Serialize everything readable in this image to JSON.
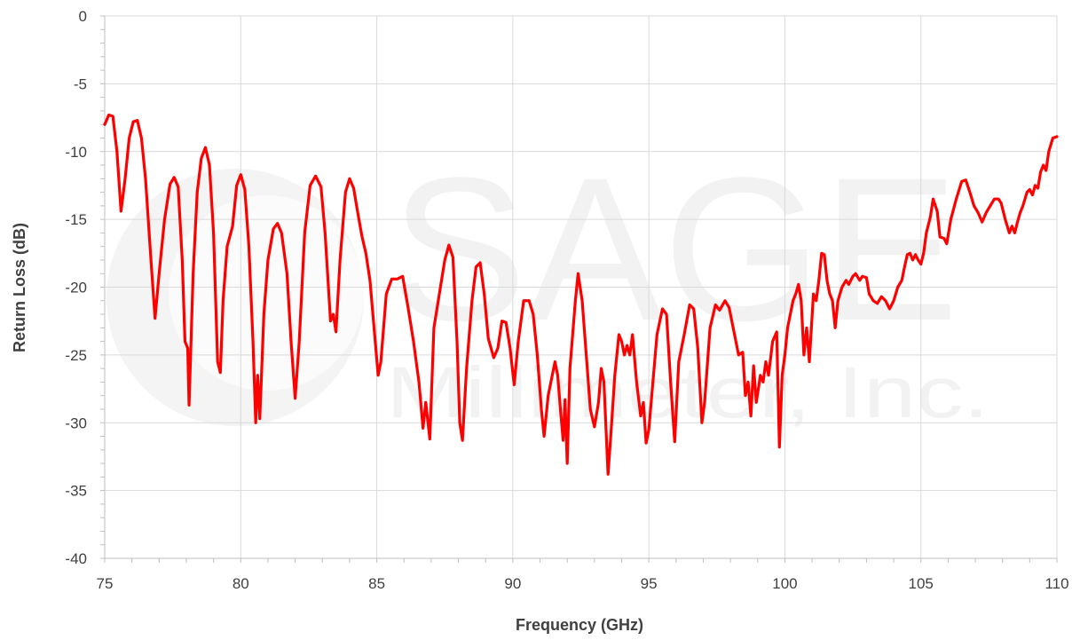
{
  "chart_data": {
    "type": "line",
    "title": "",
    "xlabel": "Frequency (GHz)",
    "ylabel": "Return Loss (dB)",
    "xlim": [
      75,
      110
    ],
    "ylim": [
      -40,
      0
    ],
    "x_ticks": [
      "75",
      "80",
      "85",
      "90",
      "95",
      "100",
      "105",
      "110"
    ],
    "y_ticks": [
      "0",
      "-5",
      "-10",
      "-15",
      "-20",
      "-25",
      "-30",
      "-35",
      "-40"
    ],
    "grid": true,
    "legend": "none",
    "watermark": {
      "line1": "SAGE",
      "line2": "Millimeter, Inc."
    },
    "colors": {
      "series": "#ff0000",
      "grid": "#d9d9d9",
      "text": "#404040",
      "watermark": "#f2f2f2"
    },
    "series": [
      {
        "points": [
          [
            75.0,
            -8.0
          ],
          [
            75.15,
            -7.3
          ],
          [
            75.3,
            -7.4
          ],
          [
            75.45,
            -10.0
          ],
          [
            75.6,
            -14.4
          ],
          [
            75.75,
            -12.0
          ],
          [
            75.9,
            -9.0
          ],
          [
            76.05,
            -7.8
          ],
          [
            76.2,
            -7.7
          ],
          [
            76.35,
            -9.0
          ],
          [
            76.5,
            -12.0
          ],
          [
            76.7,
            -18.0
          ],
          [
            76.85,
            -22.3
          ],
          [
            77.0,
            -19.0
          ],
          [
            77.2,
            -15.0
          ],
          [
            77.4,
            -12.4
          ],
          [
            77.55,
            -11.9
          ],
          [
            77.7,
            -12.6
          ],
          [
            77.85,
            -18.0
          ],
          [
            77.95,
            -24.0
          ],
          [
            78.05,
            -24.5
          ],
          [
            78.1,
            -28.7
          ],
          [
            78.25,
            -19.0
          ],
          [
            78.4,
            -13.0
          ],
          [
            78.55,
            -10.5
          ],
          [
            78.7,
            -9.7
          ],
          [
            78.85,
            -11.0
          ],
          [
            79.0,
            -16.0
          ],
          [
            79.15,
            -25.5
          ],
          [
            79.25,
            -26.3
          ],
          [
            79.35,
            -21.0
          ],
          [
            79.5,
            -17.0
          ],
          [
            79.7,
            -15.5
          ],
          [
            79.85,
            -12.5
          ],
          [
            80.0,
            -11.7
          ],
          [
            80.15,
            -12.8
          ],
          [
            80.3,
            -17.0
          ],
          [
            80.45,
            -24.0
          ],
          [
            80.55,
            -30.0
          ],
          [
            80.62,
            -26.5
          ],
          [
            80.7,
            -29.7
          ],
          [
            80.85,
            -22.0
          ],
          [
            81.0,
            -18.0
          ],
          [
            81.2,
            -15.7
          ],
          [
            81.35,
            -15.3
          ],
          [
            81.5,
            -16.0
          ],
          [
            81.7,
            -19.0
          ],
          [
            81.85,
            -24.0
          ],
          [
            82.0,
            -28.2
          ],
          [
            82.15,
            -24.0
          ],
          [
            82.35,
            -16.0
          ],
          [
            82.55,
            -12.5
          ],
          [
            82.75,
            -11.8
          ],
          [
            82.95,
            -12.6
          ],
          [
            83.1,
            -16.0
          ],
          [
            83.3,
            -22.5
          ],
          [
            83.4,
            -22.0
          ],
          [
            83.5,
            -23.3
          ],
          [
            83.65,
            -18.0
          ],
          [
            83.85,
            -13.0
          ],
          [
            84.0,
            -12.0
          ],
          [
            84.15,
            -12.7
          ],
          [
            84.3,
            -14.5
          ],
          [
            84.45,
            -16.2
          ],
          [
            84.6,
            -17.5
          ],
          [
            84.75,
            -19.5
          ],
          [
            84.9,
            -23.0
          ],
          [
            85.05,
            -26.5
          ],
          [
            85.15,
            -25.5
          ],
          [
            85.35,
            -20.5
          ],
          [
            85.55,
            -19.4
          ],
          [
            85.75,
            -19.4
          ],
          [
            85.95,
            -19.2
          ],
          [
            86.15,
            -21.5
          ],
          [
            86.35,
            -24.0
          ],
          [
            86.55,
            -27.0
          ],
          [
            86.7,
            -30.4
          ],
          [
            86.8,
            -28.5
          ],
          [
            86.95,
            -31.2
          ],
          [
            87.1,
            -23.0
          ],
          [
            87.3,
            -20.5
          ],
          [
            87.5,
            -18.0
          ],
          [
            87.65,
            -16.9
          ],
          [
            87.8,
            -17.8
          ],
          [
            87.95,
            -24.0
          ],
          [
            88.05,
            -30.0
          ],
          [
            88.15,
            -31.3
          ],
          [
            88.3,
            -26.0
          ],
          [
            88.5,
            -21.0
          ],
          [
            88.65,
            -18.5
          ],
          [
            88.8,
            -18.2
          ],
          [
            88.95,
            -20.5
          ],
          [
            89.1,
            -23.8
          ],
          [
            89.3,
            -25.2
          ],
          [
            89.45,
            -24.5
          ],
          [
            89.6,
            -22.5
          ],
          [
            89.75,
            -22.6
          ],
          [
            89.9,
            -24.5
          ],
          [
            90.05,
            -27.2
          ],
          [
            90.2,
            -24.0
          ],
          [
            90.4,
            -21.0
          ],
          [
            90.6,
            -21.0
          ],
          [
            90.75,
            -22.0
          ],
          [
            90.9,
            -25.0
          ],
          [
            91.05,
            -29.0
          ],
          [
            91.15,
            -31.0
          ],
          [
            91.3,
            -28.0
          ],
          [
            91.45,
            -26.5
          ],
          [
            91.55,
            -25.5
          ],
          [
            91.65,
            -26.5
          ],
          [
            91.75,
            -29.0
          ],
          [
            91.85,
            -31.3
          ],
          [
            91.92,
            -28.3
          ],
          [
            92.0,
            -33.0
          ],
          [
            92.1,
            -26.0
          ],
          [
            92.2,
            -23.5
          ],
          [
            92.3,
            -21.0
          ],
          [
            92.4,
            -19.0
          ],
          [
            92.55,
            -21.0
          ],
          [
            92.7,
            -25.0
          ],
          [
            92.85,
            -29.0
          ],
          [
            93.0,
            -30.3
          ],
          [
            93.15,
            -28.5
          ],
          [
            93.25,
            -26.0
          ],
          [
            93.35,
            -27.0
          ],
          [
            93.5,
            -33.8
          ],
          [
            93.6,
            -31.0
          ],
          [
            93.75,
            -26.5
          ],
          [
            93.9,
            -23.5
          ],
          [
            94.0,
            -24.0
          ],
          [
            94.1,
            -25.0
          ],
          [
            94.2,
            -24.3
          ],
          [
            94.3,
            -25.0
          ],
          [
            94.4,
            -23.5
          ],
          [
            94.55,
            -27.0
          ],
          [
            94.7,
            -29.5
          ],
          [
            94.8,
            -28.5
          ],
          [
            94.9,
            -31.5
          ],
          [
            95.0,
            -30.5
          ],
          [
            95.15,
            -27.0
          ],
          [
            95.3,
            -23.5
          ],
          [
            95.5,
            -21.6
          ],
          [
            95.65,
            -22.0
          ],
          [
            95.8,
            -27.0
          ],
          [
            95.95,
            -31.4
          ],
          [
            96.1,
            -25.5
          ],
          [
            96.3,
            -23.5
          ],
          [
            96.5,
            -21.3
          ],
          [
            96.65,
            -21.6
          ],
          [
            96.8,
            -24.5
          ],
          [
            96.95,
            -30.0
          ],
          [
            97.05,
            -28.5
          ],
          [
            97.25,
            -23.0
          ],
          [
            97.45,
            -21.3
          ],
          [
            97.6,
            -21.7
          ],
          [
            97.8,
            -21.0
          ],
          [
            97.95,
            -21.5
          ],
          [
            98.1,
            -23.0
          ],
          [
            98.3,
            -25.0
          ],
          [
            98.45,
            -24.8
          ],
          [
            98.55,
            -28.0
          ],
          [
            98.65,
            -27.0
          ],
          [
            98.75,
            -29.5
          ],
          [
            98.85,
            -25.8
          ],
          [
            98.95,
            -28.5
          ],
          [
            99.1,
            -26.5
          ],
          [
            99.2,
            -27.0
          ],
          [
            99.3,
            -25.5
          ],
          [
            99.4,
            -26.5
          ],
          [
            99.55,
            -24.0
          ],
          [
            99.7,
            -23.3
          ],
          [
            99.8,
            -31.8
          ],
          [
            99.9,
            -26.5
          ],
          [
            100.0,
            -25.0
          ],
          [
            100.1,
            -23.0
          ],
          [
            100.3,
            -21.0
          ],
          [
            100.4,
            -20.5
          ],
          [
            100.5,
            -19.8
          ],
          [
            100.6,
            -21.0
          ],
          [
            100.7,
            -25.0
          ],
          [
            100.8,
            -23.0
          ],
          [
            100.9,
            -25.5
          ],
          [
            101.05,
            -20.5
          ],
          [
            101.15,
            -21.0
          ],
          [
            101.25,
            -19.5
          ],
          [
            101.35,
            -17.5
          ],
          [
            101.45,
            -17.6
          ],
          [
            101.55,
            -19.5
          ],
          [
            101.65,
            -20.5
          ],
          [
            101.75,
            -21.0
          ],
          [
            101.85,
            -23.0
          ],
          [
            101.95,
            -21.0
          ],
          [
            102.1,
            -20.0
          ],
          [
            102.25,
            -19.5
          ],
          [
            102.35,
            -19.8
          ],
          [
            102.5,
            -19.2
          ],
          [
            102.6,
            -19.0
          ],
          [
            102.75,
            -19.5
          ],
          [
            102.85,
            -19.2
          ],
          [
            103.0,
            -19.3
          ],
          [
            103.1,
            -20.5
          ],
          [
            103.25,
            -21.0
          ],
          [
            103.4,
            -21.2
          ],
          [
            103.55,
            -20.7
          ],
          [
            103.7,
            -21.0
          ],
          [
            103.85,
            -21.6
          ],
          [
            104.0,
            -21.0
          ],
          [
            104.15,
            -20.0
          ],
          [
            104.3,
            -19.5
          ],
          [
            104.4,
            -18.5
          ],
          [
            104.5,
            -17.6
          ],
          [
            104.6,
            -17.5
          ],
          [
            104.7,
            -18.0
          ],
          [
            104.8,
            -17.6
          ],
          [
            104.9,
            -18.0
          ],
          [
            105.0,
            -18.3
          ],
          [
            105.1,
            -17.5
          ],
          [
            105.2,
            -16.0
          ],
          [
            105.35,
            -14.8
          ],
          [
            105.45,
            -13.5
          ],
          [
            105.6,
            -14.4
          ],
          [
            105.7,
            -16.3
          ],
          [
            105.85,
            -16.4
          ],
          [
            105.95,
            -16.8
          ],
          [
            106.1,
            -15.0
          ],
          [
            106.3,
            -13.5
          ],
          [
            106.5,
            -12.2
          ],
          [
            106.65,
            -12.1
          ],
          [
            106.8,
            -13.0
          ],
          [
            106.95,
            -14.0
          ],
          [
            107.1,
            -14.5
          ],
          [
            107.25,
            -15.2
          ],
          [
            107.4,
            -14.5
          ],
          [
            107.55,
            -14.0
          ],
          [
            107.7,
            -13.5
          ],
          [
            107.85,
            -13.5
          ],
          [
            107.95,
            -13.8
          ],
          [
            108.1,
            -15.0
          ],
          [
            108.25,
            -16.0
          ],
          [
            108.35,
            -15.5
          ],
          [
            108.45,
            -16.0
          ],
          [
            108.55,
            -15.2
          ],
          [
            108.65,
            -14.5
          ],
          [
            108.75,
            -14.0
          ],
          [
            108.9,
            -13.0
          ],
          [
            109.0,
            -12.8
          ],
          [
            109.1,
            -13.2
          ],
          [
            109.2,
            -12.5
          ],
          [
            109.3,
            -12.7
          ],
          [
            109.4,
            -11.5
          ],
          [
            109.5,
            -11.0
          ],
          [
            109.6,
            -11.4
          ],
          [
            109.7,
            -10.0
          ],
          [
            109.85,
            -9.0
          ],
          [
            110.0,
            -8.9
          ]
        ]
      }
    ]
  }
}
